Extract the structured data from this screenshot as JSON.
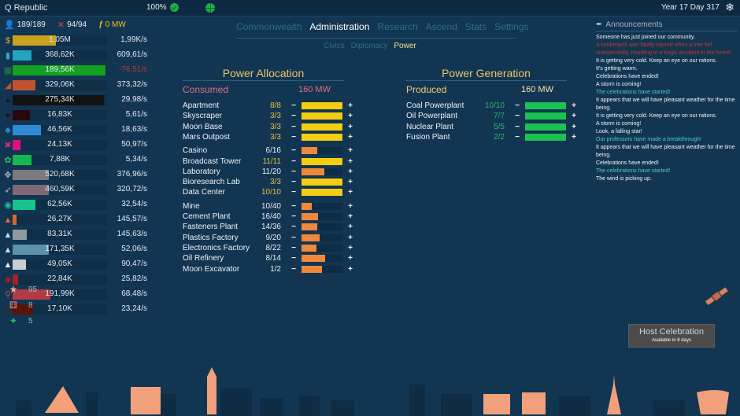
{
  "topbar": {
    "nation": "Q Republic",
    "happiness": "100%",
    "date": "Year 17 Day 317"
  },
  "status": {
    "population": "189/189",
    "military": "94/94",
    "power": "0 MW"
  },
  "resources": [
    {
      "icon": "money-icon",
      "glyph": "$",
      "icon_color": "#d4a72c",
      "amount": "1,05M",
      "rate": "1,99K/s",
      "bar_color": "#c9a21f",
      "bar_pct": 46,
      "negative": false
    },
    {
      "icon": "book-icon",
      "glyph": "▮",
      "icon_color": "#2fa7c8",
      "amount": "368,62K",
      "rate": "609,61/s",
      "bar_color": "#23a3c2",
      "bar_pct": 20,
      "negative": false
    },
    {
      "icon": "grid-icon",
      "glyph": "▦",
      "icon_color": "#1e8a38",
      "amount": "189,56K",
      "rate": "-76,51/s",
      "bar_color": "#14a020",
      "bar_pct": 98,
      "negative": true
    },
    {
      "icon": "brick-icon",
      "glyph": "◢",
      "icon_color": "#c0532e",
      "amount": "329,06K",
      "rate": "373,32/s",
      "bar_color": "#c0532e",
      "bar_pct": 24,
      "negative": false
    },
    {
      "icon": "oil-icon",
      "glyph": "●",
      "icon_color": "#1a1a1a",
      "amount": "275,34K",
      "rate": "29,98/s",
      "bar_color": "#121212",
      "bar_pct": 97,
      "negative": false
    },
    {
      "icon": "bomb-icon",
      "glyph": "●",
      "icon_color": "#2a0a0a",
      "amount": "16,83K",
      "rate": "5,61/s",
      "bar_color": "#2a070c",
      "bar_pct": 18,
      "negative": false
    },
    {
      "icon": "water-icon",
      "glyph": "♣",
      "icon_color": "#2f93dd",
      "amount": "46,56K",
      "rate": "18,63/s",
      "bar_color": "#2d8bd6",
      "bar_pct": 30,
      "negative": false
    },
    {
      "icon": "chip-icon",
      "glyph": "✖",
      "icon_color": "#d62a7e",
      "amount": "24,13K",
      "rate": "50,97/s",
      "bar_color": "#e0117f",
      "bar_pct": 8,
      "negative": false
    },
    {
      "icon": "paw-icon",
      "glyph": "✿",
      "icon_color": "#1fc455",
      "amount": "7,88K",
      "rate": "5,34/s",
      "bar_color": "#18b94c",
      "bar_pct": 20,
      "negative": false
    },
    {
      "icon": "gears-icon",
      "glyph": "✥",
      "icon_color": "#aeb4bd",
      "amount": "520,68K",
      "rate": "376,96/s",
      "bar_color": "#7a7a7f",
      "bar_pct": 38,
      "negative": false
    },
    {
      "icon": "rocket-icon",
      "glyph": "➶",
      "icon_color": "#aeb4bd",
      "amount": "460,59K",
      "rate": "320,72/s",
      "bar_color": "#7f6a73",
      "bar_pct": 38,
      "negative": false
    },
    {
      "icon": "circuit-icon",
      "glyph": "◉",
      "icon_color": "#19c59a",
      "amount": "62,56K",
      "rate": "32,54/s",
      "bar_color": "#18c28f",
      "bar_pct": 24,
      "negative": false
    },
    {
      "icon": "ore-orange-icon",
      "glyph": "▲",
      "icon_color": "#e06a2c",
      "amount": "26,27K",
      "rate": "145,57/s",
      "bar_color": "#d96a2a",
      "bar_pct": 4,
      "negative": false
    },
    {
      "icon": "ore-gray-icon",
      "glyph": "▲",
      "icon_color": "#d3d8dd",
      "amount": "83,31K",
      "rate": "145,63/s",
      "bar_color": "#8f9a9f",
      "bar_pct": 15,
      "negative": false
    },
    {
      "icon": "ore-blue-icon",
      "glyph": "▲",
      "icon_color": "#d3d8dd",
      "amount": "171,35K",
      "rate": "52,06/s",
      "bar_color": "#5d92a8",
      "bar_pct": 38,
      "negative": false
    },
    {
      "icon": "ore-white-icon",
      "glyph": "▲",
      "icon_color": "#e7ecf0",
      "amount": "49,05K",
      "rate": "90,47/s",
      "bar_color": "#c9ced3",
      "bar_pct": 14,
      "negative": false
    },
    {
      "icon": "ruby-icon",
      "glyph": "◆",
      "icon_color": "#a81c22",
      "amount": "22,84K",
      "rate": "25,82/s",
      "bar_color": "#a81e26",
      "bar_pct": 6,
      "negative": false
    },
    {
      "icon": "plant-icon",
      "glyph": "⚲",
      "icon_color": "#c44150",
      "amount": "191,99K",
      "rate": "68,48/s",
      "bar_color": "#b03c46",
      "bar_pct": 40,
      "negative": false
    },
    {
      "icon": "meat-icon",
      "glyph": "●",
      "icon_color": "#5a1a0a",
      "amount": "17,10K",
      "rate": "23,24/s",
      "bar_color": "#5a1407",
      "bar_pct": 22,
      "negative": false
    }
  ],
  "misc": [
    {
      "icon": "star-icon",
      "glyph": "★",
      "icon_color": "#f4a58a",
      "value": "95"
    },
    {
      "icon": "dice-icon",
      "glyph": "⚅",
      "icon_color": "#f07a7a",
      "value": "8"
    },
    {
      "icon": "candy-icon",
      "glyph": "✦",
      "icon_color": "#1fc455",
      "value": "5"
    }
  ],
  "tabs": [
    {
      "label": "Commonwealth",
      "active": false
    },
    {
      "label": "Administration",
      "active": true
    },
    {
      "label": "Research",
      "active": false
    },
    {
      "label": "Ascend",
      "active": false
    },
    {
      "label": "Stats",
      "active": false
    },
    {
      "label": "Settings",
      "active": false
    }
  ],
  "subtabs": [
    {
      "label": "Civics",
      "active": false
    },
    {
      "label": "Diplomacy",
      "active": false
    },
    {
      "label": "Power",
      "active": true
    }
  ],
  "allocation": {
    "title": "Power Allocation",
    "label": "Consumed",
    "value": "160 MW",
    "groups": [
      [
        {
          "name": "Apartment",
          "count": "8/8",
          "pct": 100,
          "full": true
        },
        {
          "name": "Skyscraper",
          "count": "3/3",
          "pct": 100,
          "full": true
        },
        {
          "name": "Moon Base",
          "count": "3/3",
          "pct": 100,
          "full": true
        },
        {
          "name": "Mars Outpost",
          "count": "3/3",
          "pct": 100,
          "full": true
        }
      ],
      [
        {
          "name": "Casino",
          "count": "6/16",
          "pct": 38,
          "full": false
        },
        {
          "name": "Broadcast Tower",
          "count": "11/11",
          "pct": 100,
          "full": true
        },
        {
          "name": "Laboratory",
          "count": "11/20",
          "pct": 55,
          "full": false
        },
        {
          "name": "Bioresearch Lab",
          "count": "3/3",
          "pct": 100,
          "full": true
        },
        {
          "name": "Data Center",
          "count": "10/10",
          "pct": 100,
          "full": true
        }
      ],
      [
        {
          "name": "Mine",
          "count": "10/40",
          "pct": 25,
          "full": false
        },
        {
          "name": "Cement Plant",
          "count": "16/40",
          "pct": 40,
          "full": false
        },
        {
          "name": "Fasteners Plant",
          "count": "14/36",
          "pct": 39,
          "full": false
        },
        {
          "name": "Plastics Factory",
          "count": "9/20",
          "pct": 45,
          "full": false
        },
        {
          "name": "Electronics Factory",
          "count": "8/22",
          "pct": 36,
          "full": false
        },
        {
          "name": "Oil Refinery",
          "count": "8/14",
          "pct": 57,
          "full": false
        },
        {
          "name": "Moon Excavator",
          "count": "1/2",
          "pct": 50,
          "full": false
        }
      ]
    ]
  },
  "generation": {
    "title": "Power Generation",
    "label": "Produced",
    "value": "160 MW",
    "rows": [
      {
        "name": "Coal Powerplant",
        "count": "10/10",
        "pct": 100
      },
      {
        "name": "Oil Powerplant",
        "count": "7/7",
        "pct": 100
      },
      {
        "name": "Nuclear Plant",
        "count": "5/5",
        "pct": 100
      },
      {
        "name": "Fusion Plant",
        "count": "2/2",
        "pct": 100
      }
    ]
  },
  "colors": {
    "full_bar": "#f2cd12",
    "partial_bar": "#f0883a",
    "gen_bar": "#19c252",
    "count_full": "#e8c33a",
    "count_partial": "#e9eef2",
    "count_gen": "#2cb36b",
    "consumed_label": "#e0707a",
    "produced_label": "#f0d26a"
  },
  "announcements": {
    "title": "Announcements",
    "messages": [
      {
        "text": "Someone has just joined our community.",
        "type": "normal"
      },
      {
        "text": "A lumberjack was fatally injured when a tree fell unexpectedly, resulting in a tragic accident in the forest!",
        "type": "red"
      },
      {
        "text": "It is getting very cold. Keep an eye on our rations.",
        "type": "normal"
      },
      {
        "text": "It's getting warm.",
        "type": "normal"
      },
      {
        "text": "Celebrations have ended!",
        "type": "normal"
      },
      {
        "text": "A storm is coming!",
        "type": "normal"
      },
      {
        "text": "The celebrations have started!",
        "type": "cyan"
      },
      {
        "text": "It appears that we will have pleasant weather for the time being.",
        "type": "normal"
      },
      {
        "text": "It is getting very cold. Keep an eye on our rations.",
        "type": "normal"
      },
      {
        "text": "A storm is coming!",
        "type": "normal"
      },
      {
        "text": "Look, a falling star!",
        "type": "normal"
      },
      {
        "text": "Our professors have made a breakthrough!",
        "type": "cyan"
      },
      {
        "text": "It appears that we will have pleasant weather for the time being.",
        "type": "normal"
      },
      {
        "text": "Celebrations have ended!",
        "type": "normal"
      },
      {
        "text": "The celebrations have started!",
        "type": "cyan"
      },
      {
        "text": "The wind is picking up.",
        "type": "normal"
      }
    ]
  },
  "celebration": {
    "button": "Host Celebration",
    "subtitle": "Available in 8 days"
  }
}
